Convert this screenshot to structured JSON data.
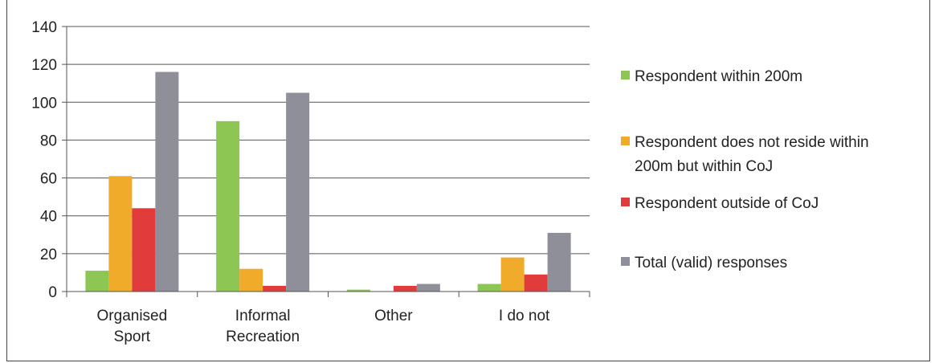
{
  "chart_data": {
    "type": "bar",
    "title": "",
    "xlabel": "",
    "ylabel": "",
    "categories": [
      [
        "Organised",
        "Sport"
      ],
      [
        "Informal",
        "Recreation"
      ],
      [
        "Other"
      ],
      [
        "I do not"
      ]
    ],
    "series": [
      {
        "name": "Respondent within 200m",
        "color": "#8ec654",
        "values": [
          11,
          90,
          1,
          4
        ]
      },
      {
        "name": "Respondent does not reside within 200m but within CoJ",
        "legend_lines": [
          "Respondent does not reside within",
          "200m but within CoJ"
        ],
        "color": "#f0ab2a",
        "values": [
          61,
          12,
          0,
          18
        ]
      },
      {
        "name": "Respondent outside of CoJ",
        "color": "#e23b3b",
        "values": [
          44,
          3,
          3,
          9
        ]
      },
      {
        "name": "Total (valid) responses",
        "color": "#8f8f9a",
        "values": [
          116,
          105,
          4,
          31
        ]
      }
    ],
    "ylim": [
      0,
      140
    ],
    "yticks": [
      0,
      20,
      40,
      60,
      80,
      100,
      120,
      140
    ],
    "grid": true,
    "legend_position": "right"
  }
}
